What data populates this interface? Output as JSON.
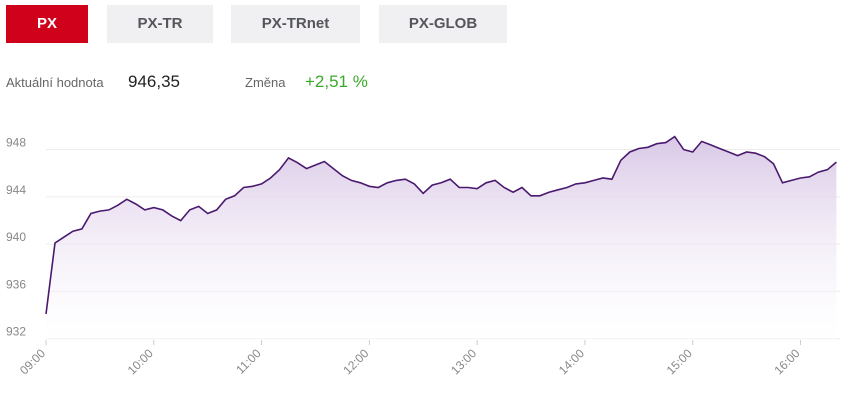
{
  "tabs": {
    "labels": [
      "PX",
      "PX-TR",
      "PX-TRnet",
      "PX-GLOB"
    ],
    "active": 0
  },
  "info": {
    "value_label": "Aktuální hodnota",
    "value": "946,35",
    "change_label": "Změna",
    "change": "+2,51 %"
  },
  "chart_data": {
    "type": "area-line",
    "x": [
      "09:00",
      "09:05",
      "09:10",
      "09:15",
      "09:20",
      "09:25",
      "09:30",
      "09:35",
      "09:40",
      "09:45",
      "09:50",
      "09:55",
      "10:00",
      "10:05",
      "10:10",
      "10:15",
      "10:20",
      "10:25",
      "10:30",
      "10:35",
      "10:40",
      "10:45",
      "10:50",
      "10:55",
      "11:00",
      "11:05",
      "11:10",
      "11:15",
      "11:20",
      "11:25",
      "11:30",
      "11:35",
      "11:40",
      "11:45",
      "11:50",
      "11:55",
      "12:00",
      "12:05",
      "12:10",
      "12:15",
      "12:20",
      "12:25",
      "12:30",
      "12:35",
      "12:40",
      "12:45",
      "12:50",
      "12:55",
      "13:00",
      "13:05",
      "13:10",
      "13:15",
      "13:20",
      "13:25",
      "13:30",
      "13:35",
      "13:40",
      "13:45",
      "13:50",
      "13:55",
      "14:00",
      "14:05",
      "14:10",
      "14:15",
      "14:20",
      "14:25",
      "14:30",
      "14:35",
      "14:40",
      "14:45",
      "14:50",
      "14:55",
      "15:00",
      "15:05",
      "15:10",
      "15:15",
      "15:20",
      "15:25",
      "15:30",
      "15:35",
      "15:40",
      "15:45",
      "15:50",
      "15:55",
      "16:00",
      "16:05",
      "16:10",
      "16:15",
      "16:20"
    ],
    "series": [
      {
        "name": "PX",
        "color": "#4a1a6e",
        "values": [
          933.5,
          939.5,
          940,
          940.5,
          940.7,
          942,
          942.2,
          942.3,
          942.7,
          943.2,
          942.8,
          942.3,
          942.5,
          942.3,
          941.8,
          941.4,
          942.3,
          942.6,
          942,
          942.3,
          943.2,
          943.5,
          944.2,
          944.3,
          944.5,
          945,
          945.7,
          946.7,
          946.3,
          945.8,
          946.1,
          946.4,
          945.8,
          945.2,
          944.8,
          944.6,
          944.3,
          944.2,
          944.6,
          944.8,
          944.9,
          944.5,
          943.7,
          944.4,
          944.6,
          944.9,
          944.2,
          944.2,
          944.1,
          944.6,
          944.8,
          944.2,
          943.8,
          944.2,
          943.5,
          943.5,
          943.8,
          944,
          944.2,
          944.5,
          944.6,
          944.8,
          945,
          944.9,
          946.5,
          947.2,
          947.5,
          947.6,
          947.9,
          948,
          948.5,
          947.4,
          947.2,
          948.1,
          947.8,
          947.5,
          947.2,
          946.9,
          947.2,
          947.1,
          946.8,
          946.2,
          944.6,
          944.8,
          945,
          945.1,
          945.5,
          945.7,
          946.35
        ]
      }
    ],
    "xlim": [
      "09:00",
      "16:22"
    ],
    "xticks": [
      "09:00",
      "10:00",
      "11:00",
      "12:00",
      "13:00",
      "14:00",
      "15:00",
      "16:00"
    ],
    "ylim": [
      931.3,
      949.4
    ],
    "yticks": [
      932,
      936,
      940,
      944,
      948
    ],
    "grid": true
  }
}
